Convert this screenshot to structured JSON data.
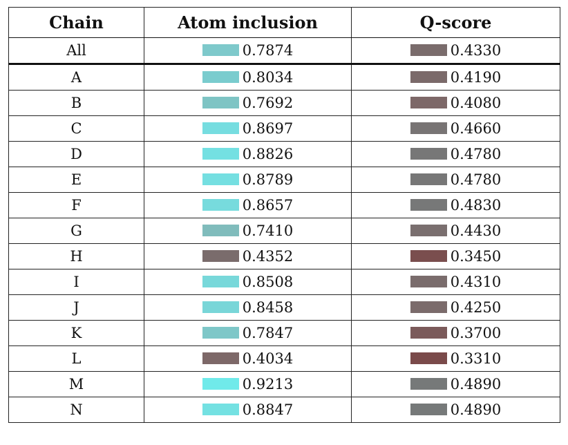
{
  "headers": {
    "chain": "Chain",
    "atom_inclusion": "Atom inclusion",
    "qscore": "Q-score"
  },
  "rows": [
    {
      "chain": "All",
      "atom_inclusion": "0.7874",
      "qscore": "0.4330",
      "ai_color": "#7ec9cb",
      "q_color": "#7a6c6c"
    },
    {
      "chain": "A",
      "atom_inclusion": "0.8034",
      "qscore": "0.4190",
      "ai_color": "#7accce",
      "q_color": "#7b6a6a"
    },
    {
      "chain": "B",
      "atom_inclusion": "0.7692",
      "qscore": "0.4080",
      "ai_color": "#7ec4c4",
      "q_color": "#7d6868"
    },
    {
      "chain": "C",
      "atom_inclusion": "0.8697",
      "qscore": "0.4660",
      "ai_color": "#76dde0",
      "q_color": "#787474"
    },
    {
      "chain": "D",
      "atom_inclusion": "0.8826",
      "qscore": "0.4780",
      "ai_color": "#74e0e2",
      "q_color": "#777777"
    },
    {
      "chain": "E",
      "atom_inclusion": "0.8789",
      "qscore": "0.4780",
      "ai_color": "#75dfe1",
      "q_color": "#777777"
    },
    {
      "chain": "F",
      "atom_inclusion": "0.8657",
      "qscore": "0.4830",
      "ai_color": "#77dbdd",
      "q_color": "#777878"
    },
    {
      "chain": "G",
      "atom_inclusion": "0.7410",
      "qscore": "0.4430",
      "ai_color": "#80bcbc",
      "q_color": "#7a6f6f"
    },
    {
      "chain": "H",
      "atom_inclusion": "0.4352",
      "qscore": "0.3450",
      "ai_color": "#7a6c6c",
      "q_color": "#7a4e4e"
    },
    {
      "chain": "I",
      "atom_inclusion": "0.8508",
      "qscore": "0.4310",
      "ai_color": "#78d8da",
      "q_color": "#7a6c6c"
    },
    {
      "chain": "J",
      "atom_inclusion": "0.8458",
      "qscore": "0.4250",
      "ai_color": "#79d6d8",
      "q_color": "#7b6b6b"
    },
    {
      "chain": "K",
      "atom_inclusion": "0.7847",
      "qscore": "0.3700",
      "ai_color": "#7ec7c8",
      "q_color": "#7b5a5a"
    },
    {
      "chain": "L",
      "atom_inclusion": "0.4034",
      "qscore": "0.3310",
      "ai_color": "#7d6868",
      "q_color": "#7a4a4a"
    },
    {
      "chain": "M",
      "atom_inclusion": "0.9213",
      "qscore": "0.4890",
      "ai_color": "#70eaea",
      "q_color": "#767979"
    },
    {
      "chain": "N",
      "atom_inclusion": "0.8847",
      "qscore": "0.4890",
      "ai_color": "#74e1e2",
      "q_color": "#767979"
    }
  ]
}
